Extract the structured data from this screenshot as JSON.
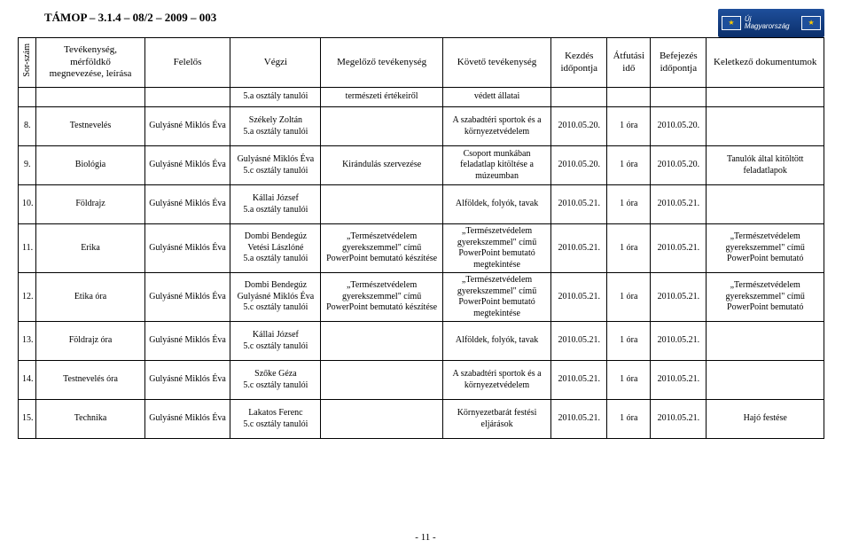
{
  "doc": {
    "code": "TÁMOP – 3.1.4 – 08/2 – 2009 – 003",
    "logo_label": "Új Magyarország",
    "page": "- 11 -"
  },
  "colors": {
    "border": "#000000",
    "background": "#ffffff",
    "logo_bg": "#1e4f9b",
    "logo_text": "#ffffff"
  },
  "fonts": {
    "body_family": "Times New Roman",
    "body_size_pt": 8,
    "header_size_pt": 9,
    "code_size_pt": 10
  },
  "table": {
    "headers": [
      "Sor-szám",
      "Tevékenység,\nmérföldkő\nmegnevezése, leírása",
      "Felelős",
      "Végzi",
      "Megelőző tevékenység",
      "Követő tevékenység",
      "Kezdés\nidőpontja",
      "Átfutási\nidő",
      "Befejezés\nidőpontja",
      "Keletkező dokumentumok"
    ],
    "rows": [
      {
        "short": true,
        "c": [
          "",
          "",
          "",
          "5.a osztály tanulói",
          "természeti értékeiről",
          "védett állatai",
          "",
          "",
          "",
          ""
        ]
      },
      {
        "c": [
          "8.",
          "Testnevelés",
          "Gulyásné Miklós Éva",
          "Székely Zoltán\n5.a osztály tanulói",
          "",
          "A szabadtéri sportok és a környezetvédelem",
          "2010.05.20.",
          "1 óra",
          "2010.05.20.",
          ""
        ]
      },
      {
        "c": [
          "9.",
          "Biológia",
          "Gulyásné Miklós Éva",
          "Gulyásné Miklós Éva\n5.c osztály tanulói",
          "Kirándulás szervezése",
          "Csoport munkában feladatlap kitöltése a múzeumban",
          "2010.05.20.",
          "1 óra",
          "2010.05.20.",
          "Tanulók által kitöltött feladatlapok"
        ]
      },
      {
        "c": [
          "10.",
          "Földrajz",
          "Gulyásné Miklós Éva",
          "Kállai József\n5.a osztály tanulói",
          "",
          "Alföldek, folyók, tavak",
          "2010.05.21.",
          "1 óra",
          "2010.05.21.",
          ""
        ]
      },
      {
        "c": [
          "11.",
          "Erika",
          "Gulyásné Miklós Éva",
          "Dombi Bendegúz\nVetési Lászlóné\n5.a osztály tanulói",
          "„Természetvédelem gyerekszemmel\" című PowerPoint bemutató készítése",
          "„Természetvédelem gyerekszemmel\" című PowerPoint bemutató megtekintése",
          "2010.05.21.",
          "1 óra",
          "2010.05.21.",
          "„Természetvédelem gyerekszemmel\" című PowerPoint bemutató"
        ]
      },
      {
        "c": [
          "12.",
          "Etika óra",
          "Gulyásné Miklós Éva",
          "Dombi Bendegúz\nGulyásné Miklós Éva\n5.c osztály tanulói",
          "„Természetvédelem gyerekszemmel\" című PowerPoint bemutató készítése",
          "„Természetvédelem gyerekszemmel\" című PowerPoint bemutató megtekintése",
          "2010.05.21.",
          "1 óra",
          "2010.05.21.",
          "„Természetvédelem gyerekszemmel\" című PowerPoint bemutató"
        ]
      },
      {
        "c": [
          "13.",
          "Földrajz óra",
          "Gulyásné Miklós Éva",
          "Kállai József\n5.c osztály tanulói",
          "",
          "Alföldek, folyók, tavak",
          "2010.05.21.",
          "1 óra",
          "2010.05.21.",
          ""
        ]
      },
      {
        "c": [
          "14.",
          "Testnevelés óra",
          "Gulyásné Miklós Éva",
          "Szőke Géza\n5.c osztály tanulói",
          "",
          "A szabadtéri sportok és a környezetvédelem",
          "2010.05.21.",
          "1 óra",
          "2010.05.21.",
          ""
        ]
      },
      {
        "c": [
          "15.",
          "Technika",
          "Gulyásné Miklós Éva",
          "Lakatos Ferenc\n5.c osztály tanulói",
          "",
          "Környezetbarát festési eljárások",
          "2010.05.21.",
          "1 óra",
          "2010.05.21.",
          "Hajó festése"
        ]
      }
    ]
  }
}
